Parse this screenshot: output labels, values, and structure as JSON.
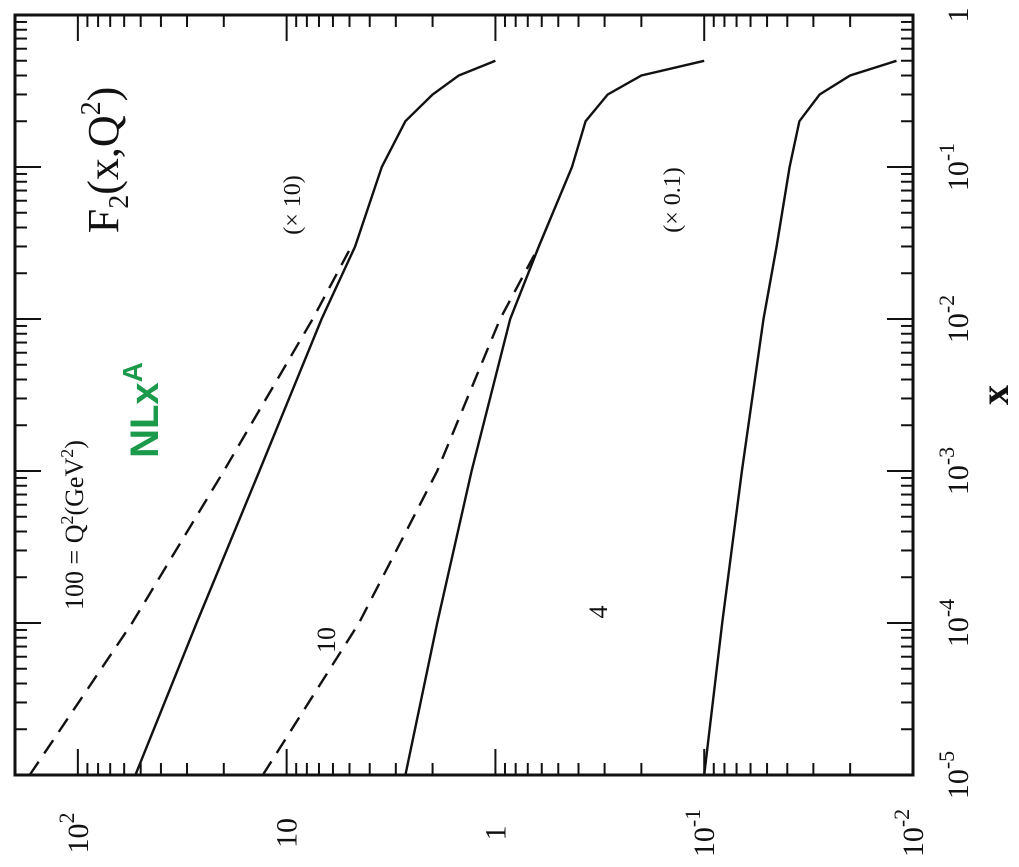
{
  "chart_data": {
    "type": "line",
    "rotation": "page rotated 90 degrees counter-clockwise",
    "title": "F2(x,Q2)",
    "annotation": "NLx^A",
    "xlabel": "x",
    "xscale": "log",
    "xlim": [
      1e-05,
      1
    ],
    "yscale": "log",
    "ylim": [
      0.01,
      200
    ],
    "x_ticks": [
      {
        "value": 1e-05,
        "base": "10",
        "exp": "-5"
      },
      {
        "value": 0.0001,
        "base": "10",
        "exp": "-4"
      },
      {
        "value": 0.001,
        "base": "10",
        "exp": "-3"
      },
      {
        "value": 0.01,
        "base": "10",
        "exp": "-2"
      },
      {
        "value": 0.1,
        "base": "10",
        "exp": "-1"
      },
      {
        "value": 1,
        "base": "1",
        "exp": ""
      }
    ],
    "y_ticks": [
      {
        "value": 100,
        "base": "10",
        "exp": "2"
      },
      {
        "value": 10,
        "base": "10",
        "exp": ""
      },
      {
        "value": 1,
        "base": "1",
        "exp": ""
      },
      {
        "value": 0.1,
        "base": "10",
        "exp": "-1"
      },
      {
        "value": 0.01,
        "base": "10",
        "exp": "-2"
      }
    ],
    "series": [
      {
        "label": "100 = Q2(GeV2)",
        "scale_label": "(× 10)",
        "style": "solid",
        "x": [
          1e-05,
          0.0001,
          0.001,
          0.01,
          0.03,
          0.1,
          0.2,
          0.3,
          0.4,
          0.5
        ],
        "y": [
          53,
          27,
          13.5,
          6.8,
          4.7,
          3.5,
          2.7,
          2.0,
          1.5,
          1.0
        ]
      },
      {
        "style": "dashed",
        "x": [
          1e-05,
          0.0001,
          0.001,
          0.01,
          0.03
        ],
        "y": [
          170,
          55,
          20,
          7.5,
          4.9
        ]
      },
      {
        "label": "10",
        "style": "solid",
        "x": [
          1e-05,
          0.0001,
          0.001,
          0.01,
          0.03,
          0.1,
          0.2,
          0.3,
          0.4,
          0.5
        ],
        "y": [
          2.7,
          1.9,
          1.3,
          0.85,
          0.62,
          0.43,
          0.37,
          0.29,
          0.2,
          0.1
        ]
      },
      {
        "style": "dashed",
        "x": [
          1e-05,
          0.0001,
          0.001,
          0.01,
          0.03
        ],
        "y": [
          13,
          4.5,
          1.9,
          0.95,
          0.62
        ]
      },
      {
        "label": "4",
        "scale_label": "(× 0.1)",
        "style": "solid",
        "x": [
          1e-05,
          0.0001,
          0.001,
          0.01,
          0.03,
          0.1,
          0.2,
          0.3,
          0.4,
          0.5
        ],
        "y": [
          0.1,
          0.082,
          0.066,
          0.052,
          0.045,
          0.039,
          0.035,
          0.028,
          0.02,
          0.012
        ]
      }
    ]
  }
}
